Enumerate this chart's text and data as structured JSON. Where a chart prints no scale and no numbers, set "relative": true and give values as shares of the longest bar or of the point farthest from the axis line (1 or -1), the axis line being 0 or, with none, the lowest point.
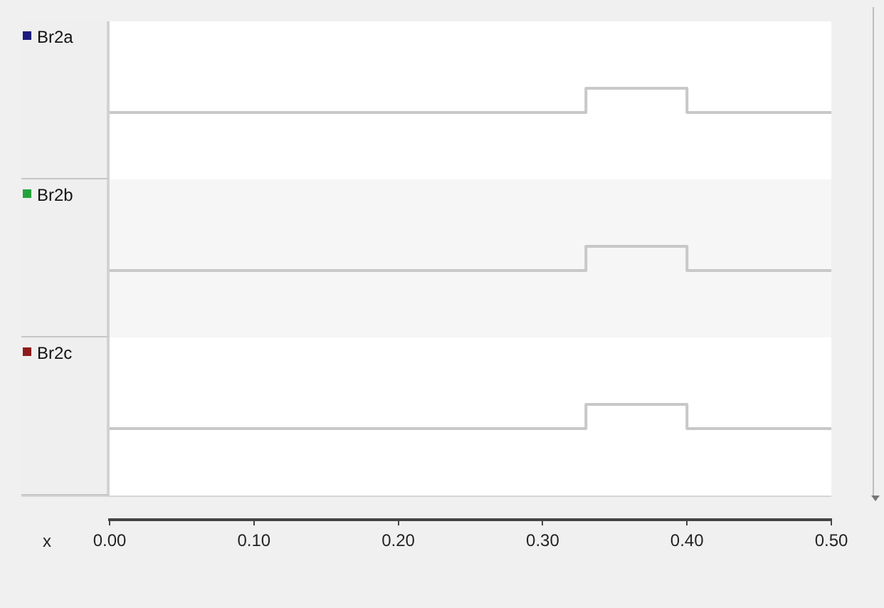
{
  "chart_data": [
    {
      "type": "step",
      "x": [
        0,
        0.33,
        0.4,
        0.5
      ],
      "series": [
        {
          "name": "Br2a",
          "color": "#c8c8c8",
          "values": [
            0,
            1,
            0,
            0
          ]
        }
      ],
      "relative": true,
      "xlim": [
        0,
        0.5
      ],
      "tick_labels": false,
      "marker": "none"
    },
    {
      "type": "step",
      "x": [
        0,
        0.33,
        0.4,
        0.5
      ],
      "series": [
        {
          "name": "Br2b",
          "color": "#c8c8c8",
          "values": [
            0,
            1,
            0,
            0
          ]
        }
      ],
      "relative": true,
      "xlim": [
        0,
        0.5
      ],
      "tick_labels": false,
      "marker": "none"
    },
    {
      "type": "step",
      "x": [
        0,
        0.33,
        0.4,
        0.5
      ],
      "series": [
        {
          "name": "Br2c",
          "color": "#c8c8c8",
          "values": [
            0,
            1,
            0,
            0
          ]
        }
      ],
      "relative": true,
      "xlim": [
        0,
        0.5
      ],
      "xticks": [
        {
          "value": 0,
          "label": "0.00"
        },
        {
          "value": 0.1,
          "label": "0.10"
        },
        {
          "value": 0.2,
          "label": "0.20"
        },
        {
          "value": 0.3,
          "label": "0.30"
        },
        {
          "value": 0.4,
          "label": "0.40"
        },
        {
          "value": 0.5,
          "label": "0.50"
        }
      ],
      "xlabel": "x",
      "marker": "none"
    }
  ]
}
